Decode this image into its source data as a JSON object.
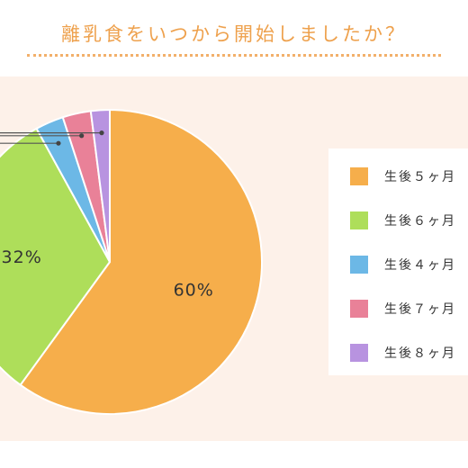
{
  "title": "離乳食をいつから開始しましたか？",
  "chart_data": {
    "type": "pie",
    "categories": [
      "生後5ヶ月",
      "生後6ヶ月",
      "生後4ヶ月",
      "生後7ヶ月",
      "生後8ヶ月"
    ],
    "legend_labels": [
      "生後５ヶ月",
      "生後６ヶ月",
      "生後４ヶ月",
      "生後７ヶ月",
      "生後８ヶ月"
    ],
    "values": [
      60,
      32,
      3,
      3,
      2
    ],
    "data_labels": [
      "60%",
      "32%",
      "",
      "",
      ""
    ],
    "colors": [
      "#f6ae4b",
      "#aede5a",
      "#6cb8e6",
      "#e98198",
      "#b893e0"
    ],
    "legend_position": "right",
    "grid": false
  }
}
